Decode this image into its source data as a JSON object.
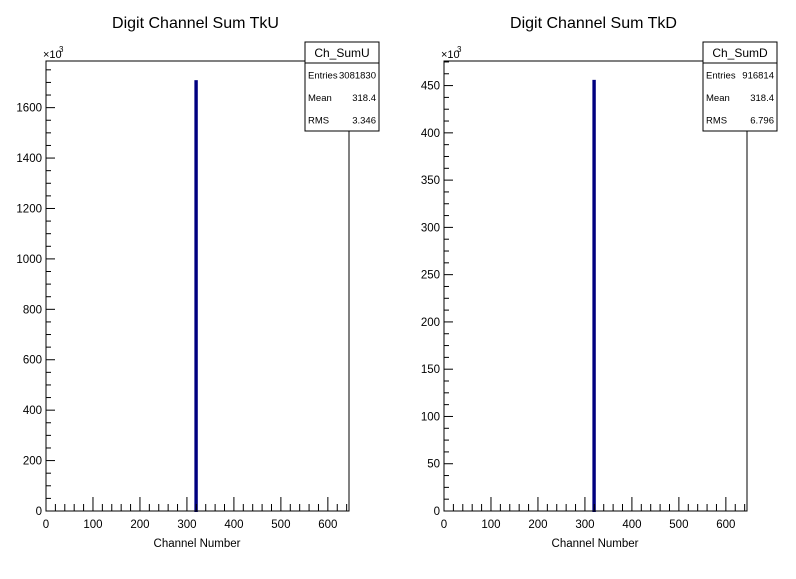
{
  "chart_data": [
    {
      "type": "bar",
      "title": "Digit Channel Sum TkU",
      "xlabel": "Channel Number",
      "ylabel": "",
      "y_multiplier": "×10",
      "y_multiplier_exponent": "3",
      "xlim": [
        0,
        645
      ],
      "ylim": [
        0,
        1785
      ],
      "x_ticks": [
        0,
        100,
        200,
        300,
        400,
        500,
        600
      ],
      "y_ticks": [
        0,
        200,
        400,
        600,
        800,
        1000,
        1200,
        1400,
        1600
      ],
      "bins": [
        {
          "x": 318,
          "width": 3,
          "value": 1705
        }
      ],
      "bar_color": "#000080",
      "stats": {
        "name": "Ch_SumU",
        "rows": [
          {
            "label": "Entries",
            "value": "3081830"
          },
          {
            "label": "Mean",
            "value": "318.4"
          },
          {
            "label": "RMS",
            "value": "3.346"
          }
        ]
      }
    },
    {
      "type": "bar",
      "title": "Digit Channel Sum TkD",
      "xlabel": "Channel Number",
      "ylabel": "",
      "y_multiplier": "×10",
      "y_multiplier_exponent": "3",
      "xlim": [
        0,
        645
      ],
      "ylim": [
        0,
        476
      ],
      "x_ticks": [
        0,
        100,
        200,
        300,
        400,
        500,
        600
      ],
      "y_ticks": [
        0,
        50,
        100,
        150,
        200,
        250,
        300,
        350,
        400,
        450
      ],
      "bins": [
        {
          "x": 318,
          "width": 3,
          "value": 455
        }
      ],
      "bar_color": "#000080",
      "stats": {
        "name": "Ch_SumD",
        "rows": [
          {
            "label": "Entries",
            "value": "916814"
          },
          {
            "label": "Mean",
            "value": "318.4"
          },
          {
            "label": "RMS",
            "value": "6.796"
          }
        ]
      }
    }
  ]
}
